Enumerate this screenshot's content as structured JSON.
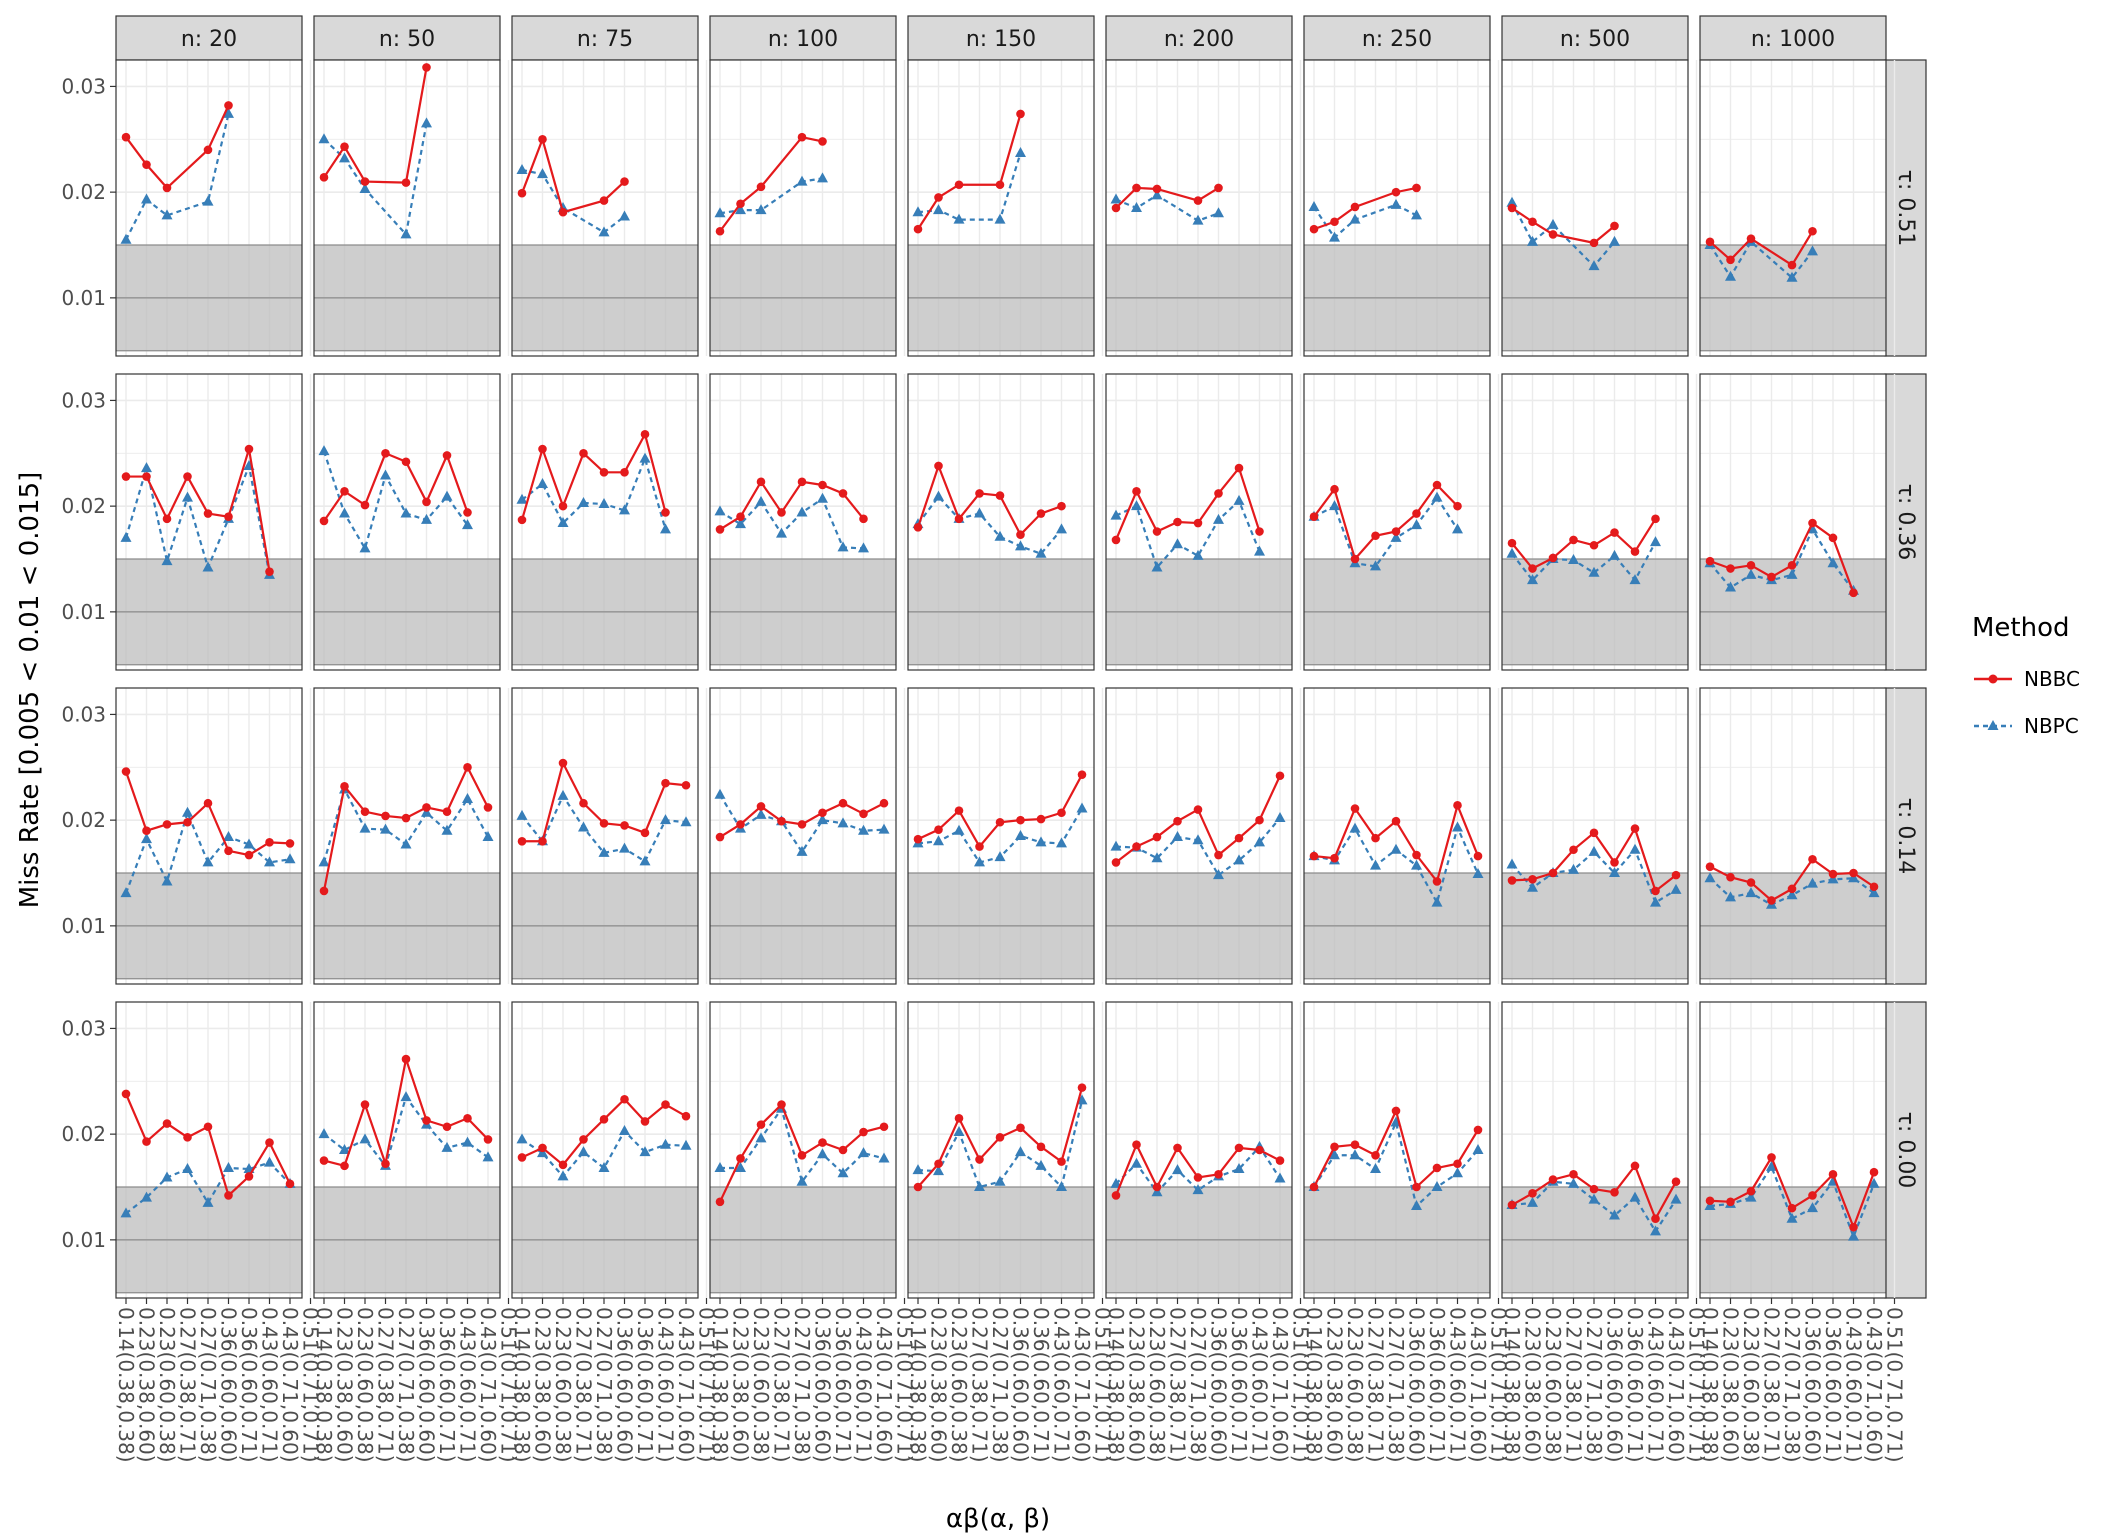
{
  "chart_data": {
    "type": "line",
    "ylabel": "Miss Rate [0.005 < 0.01 < 0.015]",
    "xlabel": "αβ(α, β)",
    "ylim": [
      0.0045,
      0.0325
    ],
    "y_ticks": [
      0.01,
      0.02,
      0.03
    ],
    "y_tick_labels": [
      "0.01",
      "0.02",
      "0.03"
    ],
    "shaded_band": [
      0.005,
      0.015
    ],
    "reference_line": 0.01,
    "grid": true,
    "legend_position": "right",
    "x_categories": [
      "0.14(0.38,0.38)",
      "0.23(0.38,0.60)",
      "0.23(0.60,0.38)",
      "0.27(0.38,0.71)",
      "0.27(0.71,0.38)",
      "0.36(0.60,0.60)",
      "0.36(0.60,0.71)",
      "0.43(0.60,0.71)",
      "0.43(0.71,0.60)",
      "0.51(0.71,0.71)"
    ],
    "col_facet_labels": [
      "n: 20",
      "n: 50",
      "n: 75",
      "n: 100",
      "n: 150",
      "n: 200",
      "n: 250",
      "n: 500",
      "n: 1000"
    ],
    "row_facet_labels": [
      "τ: 0.51",
      "τ: 0.36",
      "τ: 0.14",
      "τ: 0.00"
    ],
    "legend": {
      "title": "Method",
      "items": [
        {
          "name": "NBBC",
          "color": "#E41A1C",
          "marker": "circle",
          "line": "solid"
        },
        {
          "name": "NBPC",
          "color": "#377EB8",
          "marker": "triangle",
          "line": "dashed"
        }
      ]
    },
    "panels": [
      [
        {
          "NBBC": [
            0.0252,
            0.0226,
            0.0204,
            null,
            0.024,
            0.0282,
            null,
            null,
            null,
            null
          ],
          "NBPC": [
            0.0155,
            0.0193,
            0.0178,
            null,
            0.0191,
            0.0274,
            null,
            null,
            null,
            null
          ]
        },
        {
          "NBBC": [
            0.0214,
            0.0243,
            0.021,
            null,
            0.0209,
            0.0318,
            null,
            null,
            null,
            null
          ],
          "NBPC": [
            0.025,
            0.0232,
            0.0203,
            null,
            0.016,
            0.0265,
            null,
            null,
            null,
            null
          ]
        },
        {
          "NBBC": [
            0.0199,
            0.025,
            0.0181,
            null,
            0.0192,
            0.021,
            null,
            null,
            null,
            null
          ],
          "NBPC": [
            0.0221,
            0.0217,
            0.0185,
            null,
            0.0162,
            0.0177,
            null,
            null,
            null,
            null
          ]
        },
        {
          "NBBC": [
            0.0163,
            0.0189,
            0.0205,
            null,
            0.0252,
            0.0248,
            null,
            null,
            null,
            null
          ],
          "NBPC": [
            0.018,
            0.0183,
            0.0183,
            null,
            0.021,
            0.0213,
            null,
            null,
            null,
            null
          ]
        },
        {
          "NBBC": [
            0.0165,
            0.0195,
            0.0207,
            null,
            0.0207,
            0.0274,
            null,
            null,
            null,
            null
          ],
          "NBPC": [
            0.0181,
            0.0183,
            0.0174,
            null,
            0.0174,
            0.0237,
            null,
            null,
            null,
            null
          ]
        },
        {
          "NBBC": [
            0.0185,
            0.0204,
            0.0203,
            null,
            0.0192,
            0.0204,
            null,
            null,
            null,
            null
          ],
          "NBPC": [
            0.0193,
            0.0185,
            0.0197,
            null,
            0.0173,
            0.018,
            null,
            null,
            null,
            null
          ]
        },
        {
          "NBBC": [
            0.0165,
            0.0172,
            0.0186,
            null,
            0.02,
            0.0204,
            null,
            null,
            null,
            null
          ],
          "NBPC": [
            0.0186,
            0.0157,
            0.0174,
            null,
            0.0188,
            0.0178,
            null,
            null,
            null,
            null
          ]
        },
        {
          "NBBC": [
            0.0185,
            0.0172,
            0.016,
            null,
            0.0152,
            0.0168,
            null,
            null,
            null,
            null
          ],
          "NBPC": [
            0.019,
            0.0153,
            0.0169,
            null,
            0.013,
            0.0153,
            null,
            null,
            null,
            null
          ]
        },
        {
          "NBBC": [
            0.0153,
            0.0136,
            0.0156,
            null,
            0.0131,
            0.0163,
            null,
            null,
            null,
            null
          ],
          "NBPC": [
            0.015,
            0.012,
            0.0153,
            null,
            0.0119,
            0.0144,
            null,
            null,
            null,
            null
          ]
        }
      ],
      [
        {
          "NBBC": [
            0.0228,
            0.0228,
            0.0188,
            0.0228,
            0.0193,
            0.019,
            0.0254,
            0.0138,
            null,
            null
          ],
          "NBPC": [
            0.017,
            0.0236,
            0.0148,
            0.0208,
            0.0142,
            0.0188,
            0.0238,
            0.0135,
            null,
            null
          ]
        },
        {
          "NBBC": [
            0.0186,
            0.0214,
            0.0201,
            0.025,
            0.0242,
            0.0204,
            0.0248,
            0.0194,
            null,
            null
          ],
          "NBPC": [
            0.0252,
            0.0193,
            0.016,
            0.0229,
            0.0193,
            0.0187,
            0.0209,
            0.0182,
            null,
            null
          ]
        },
        {
          "NBBC": [
            0.0187,
            0.0254,
            0.02,
            0.025,
            0.0232,
            0.0232,
            0.0268,
            0.0194,
            null,
            null
          ],
          "NBPC": [
            0.0206,
            0.0221,
            0.0184,
            0.0203,
            0.0202,
            0.0196,
            0.0245,
            0.0178,
            null,
            null
          ]
        },
        {
          "NBBC": [
            0.0178,
            0.019,
            0.0223,
            0.0194,
            0.0223,
            0.022,
            0.0212,
            0.0188,
            null,
            null
          ],
          "NBPC": [
            0.0195,
            0.0183,
            0.0204,
            0.0174,
            0.0194,
            0.0207,
            0.0161,
            0.016,
            null,
            null
          ]
        },
        {
          "NBBC": [
            0.018,
            0.0238,
            0.0188,
            0.0212,
            0.021,
            0.0173,
            0.0193,
            0.02,
            null,
            null
          ],
          "NBPC": [
            0.0183,
            0.0209,
            0.0188,
            0.0193,
            0.0171,
            0.0162,
            0.0155,
            0.0178,
            null,
            null
          ]
        },
        {
          "NBBC": [
            0.0168,
            0.0214,
            0.0176,
            0.0185,
            0.0184,
            0.0212,
            0.0236,
            0.0176,
            null,
            null
          ],
          "NBPC": [
            0.0191,
            0.02,
            0.0142,
            0.0164,
            0.0153,
            0.0187,
            0.0205,
            0.0157,
            null,
            null
          ]
        },
        {
          "NBBC": [
            0.019,
            0.0216,
            0.015,
            0.0172,
            0.0176,
            0.0193,
            0.022,
            0.02,
            null,
            null
          ],
          "NBPC": [
            0.019,
            0.02,
            0.0146,
            0.0143,
            0.017,
            0.0182,
            0.0208,
            0.0178,
            null,
            null
          ]
        },
        {
          "NBBC": [
            0.0165,
            0.0141,
            0.0151,
            0.0168,
            0.0163,
            0.0175,
            0.0157,
            0.0188,
            null,
            null
          ],
          "NBPC": [
            0.0155,
            0.013,
            0.015,
            0.0149,
            0.0137,
            0.0153,
            0.013,
            0.0166,
            null,
            null
          ]
        },
        {
          "NBBC": [
            0.0148,
            0.0141,
            0.0144,
            0.0133,
            0.0144,
            0.0184,
            0.017,
            0.0118,
            null,
            null
          ],
          "NBPC": [
            0.0146,
            0.0123,
            0.0135,
            0.013,
            0.0135,
            0.0178,
            0.0146,
            0.012,
            null,
            null
          ]
        }
      ],
      [
        {
          "NBBC": [
            0.0246,
            0.019,
            0.0196,
            0.0198,
            0.0216,
            0.0171,
            0.0167,
            0.0179,
            0.0178,
            null
          ],
          "NBPC": [
            0.0131,
            0.0182,
            0.0142,
            0.0207,
            0.016,
            0.0184,
            0.0177,
            0.016,
            0.0163,
            null
          ]
        },
        {
          "NBBC": [
            0.0133,
            0.0232,
            0.0208,
            0.0204,
            0.0202,
            0.0212,
            0.0208,
            0.025,
            0.0212,
            null
          ],
          "NBPC": [
            0.016,
            0.0229,
            0.0192,
            0.0191,
            0.0177,
            0.0207,
            0.019,
            0.022,
            0.0184,
            null
          ]
        },
        {
          "NBBC": [
            0.018,
            0.018,
            0.0254,
            0.0216,
            0.0197,
            0.0195,
            0.0188,
            0.0235,
            0.0233,
            null
          ],
          "NBPC": [
            0.0204,
            0.018,
            0.0223,
            0.0193,
            0.0169,
            0.0173,
            0.0161,
            0.02,
            0.0198,
            null
          ]
        },
        {
          "NBBC": [
            0.0184,
            0.0196,
            0.0213,
            0.0199,
            0.0196,
            0.0207,
            0.0216,
            0.0206,
            0.0216,
            null
          ],
          "NBPC": [
            0.0224,
            0.0192,
            0.0205,
            0.0199,
            0.017,
            0.02,
            0.0197,
            0.019,
            0.0191,
            null
          ]
        },
        {
          "NBBC": [
            0.0182,
            0.0191,
            0.0209,
            0.0175,
            0.0198,
            0.02,
            0.0201,
            0.0207,
            0.0243,
            null
          ],
          "NBPC": [
            0.0178,
            0.018,
            0.019,
            0.016,
            0.0165,
            0.0185,
            0.0179,
            0.0178,
            0.0211,
            null
          ]
        },
        {
          "NBBC": [
            0.016,
            0.0175,
            0.0184,
            0.0199,
            0.021,
            0.0167,
            0.0183,
            0.02,
            0.0242,
            null
          ],
          "NBPC": [
            0.0175,
            0.0174,
            0.0164,
            0.0184,
            0.0181,
            0.0148,
            0.0162,
            0.0179,
            0.0202,
            null
          ]
        },
        {
          "NBBC": [
            0.0166,
            0.0164,
            0.0211,
            0.0183,
            0.0199,
            0.0167,
            0.0142,
            0.0214,
            0.0166,
            null
          ],
          "NBPC": [
            0.0166,
            0.0162,
            0.0192,
            0.0157,
            0.0172,
            0.0157,
            0.0122,
            0.0193,
            0.0149,
            null
          ]
        },
        {
          "NBBC": [
            0.0143,
            0.0144,
            0.015,
            0.0172,
            0.0188,
            0.016,
            0.0192,
            0.0133,
            0.0148,
            null
          ],
          "NBPC": [
            0.0158,
            0.0136,
            0.015,
            0.0153,
            0.017,
            0.015,
            0.0172,
            0.0122,
            0.0134,
            null
          ]
        },
        {
          "NBBC": [
            0.0156,
            0.0146,
            0.0141,
            0.0124,
            0.0135,
            0.0163,
            0.0149,
            0.015,
            0.0137,
            null
          ],
          "NBPC": [
            0.0145,
            0.0127,
            0.0131,
            0.012,
            0.0129,
            0.014,
            0.0144,
            0.0145,
            0.0131,
            null
          ]
        }
      ],
      [
        {
          "NBBC": [
            0.0238,
            0.0193,
            0.021,
            0.0197,
            0.0207,
            0.0142,
            0.016,
            0.0192,
            0.0153,
            null
          ],
          "NBPC": [
            0.0125,
            0.014,
            0.0159,
            0.0167,
            0.0135,
            0.0168,
            0.0167,
            0.0173,
            0.0153,
            null
          ]
        },
        {
          "NBBC": [
            0.0175,
            0.017,
            0.0228,
            0.0172,
            0.0271,
            0.0213,
            0.0207,
            0.0215,
            0.0195,
            null
          ],
          "NBPC": [
            0.02,
            0.0185,
            0.0195,
            0.017,
            0.0235,
            0.0209,
            0.0187,
            0.0192,
            0.0178,
            null
          ]
        },
        {
          "NBBC": [
            0.0178,
            0.0187,
            0.0171,
            0.0195,
            0.0214,
            0.0233,
            0.0212,
            0.0228,
            0.0217,
            null
          ],
          "NBPC": [
            0.0195,
            0.0182,
            0.016,
            0.0183,
            0.0168,
            0.0203,
            0.0183,
            0.019,
            0.0189,
            null
          ]
        },
        {
          "NBBC": [
            0.0136,
            0.0177,
            0.0209,
            0.0228,
            0.018,
            0.0192,
            0.0185,
            0.0202,
            0.0207,
            null
          ],
          "NBPC": [
            0.0168,
            0.0168,
            0.0196,
            0.0224,
            0.0155,
            0.0181,
            0.0163,
            0.0182,
            0.0177,
            null
          ]
        },
        {
          "NBBC": [
            0.015,
            0.0172,
            0.0215,
            0.0176,
            0.0197,
            0.0206,
            0.0188,
            0.0174,
            0.0244,
            null
          ],
          "NBPC": [
            0.0166,
            0.0165,
            0.0202,
            0.015,
            0.0155,
            0.0183,
            0.017,
            0.015,
            0.0232,
            null
          ]
        },
        {
          "NBBC": [
            0.0142,
            0.019,
            0.015,
            0.0187,
            0.0159,
            0.0162,
            0.0187,
            0.0185,
            0.0175,
            null
          ],
          "NBPC": [
            0.0153,
            0.0172,
            0.0145,
            0.0166,
            0.0147,
            0.016,
            0.0167,
            0.0188,
            0.0158,
            null
          ]
        },
        {
          "NBBC": [
            0.015,
            0.0188,
            0.019,
            0.018,
            0.0222,
            0.015,
            0.0168,
            0.0172,
            0.0204,
            null
          ],
          "NBPC": [
            0.015,
            0.018,
            0.018,
            0.0167,
            0.0211,
            0.0132,
            0.015,
            0.0163,
            0.0185,
            null
          ]
        },
        {
          "NBBC": [
            0.0133,
            0.0144,
            0.0157,
            0.0162,
            0.0148,
            0.0145,
            0.017,
            0.012,
            0.0155,
            null
          ],
          "NBPC": [
            0.0133,
            0.0135,
            0.0155,
            0.0153,
            0.0138,
            0.0123,
            0.014,
            0.0108,
            0.0138,
            null
          ]
        },
        {
          "NBBC": [
            0.0137,
            0.0136,
            0.0146,
            0.0178,
            0.013,
            0.0142,
            0.0162,
            0.0112,
            0.0164,
            null
          ],
          "NBPC": [
            0.0132,
            0.0134,
            0.014,
            0.0169,
            0.012,
            0.013,
            0.0155,
            0.0103,
            0.0153,
            null
          ]
        }
      ]
    ]
  }
}
